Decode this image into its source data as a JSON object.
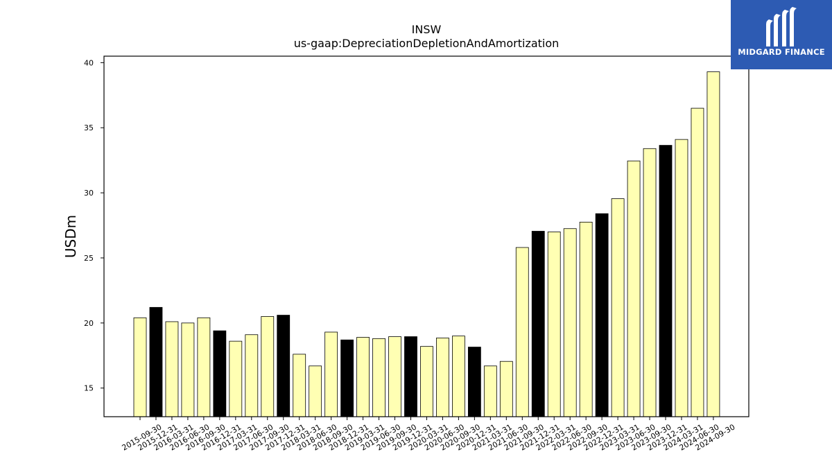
{
  "chart_data": {
    "type": "bar",
    "title": "INSW",
    "subtitle": "us-gaap:DepreciationDepletionAndAmortization",
    "ylabel": "USDm",
    "xlabel": "",
    "ylim": [
      12.8,
      40.5
    ],
    "yticks": [
      15,
      20,
      25,
      30,
      35,
      40
    ],
    "categories": [
      "2015-09-30",
      "2015-12-31",
      "2016-03-31",
      "2016-06-30",
      "2016-09-30",
      "2016-12-31",
      "2017-03-31",
      "2017-06-30",
      "2017-09-30",
      "2017-12-31",
      "2018-03-31",
      "2018-06-30",
      "2018-09-30",
      "2018-12-31",
      "2019-03-31",
      "2019-06-30",
      "2019-09-30",
      "2019-12-31",
      "2020-03-31",
      "2020-06-30",
      "2020-09-30",
      "2020-12-31",
      "2021-03-31",
      "2021-06-30",
      "2021-09-30",
      "2021-12-31",
      "2022-03-31",
      "2022-06-30",
      "2022-09-30",
      "2022-12-31",
      "2023-03-31",
      "2023-06-30",
      "2023-09-30",
      "2023-12-31",
      "2024-03-31",
      "2024-06-30",
      "2024-09-30"
    ],
    "values": [
      20.4,
      21.2,
      20.1,
      20.0,
      20.4,
      19.4,
      18.6,
      19.1,
      20.5,
      20.6,
      17.6,
      16.7,
      19.3,
      18.7,
      18.9,
      18.8,
      18.95,
      18.95,
      18.2,
      18.85,
      19.0,
      18.15,
      16.7,
      17.05,
      25.8,
      27.05,
      27.0,
      27.25,
      27.75,
      28.4,
      29.55,
      32.45,
      33.4,
      33.65,
      34.1,
      36.5,
      39.3
    ],
    "fiscal_year_end_highlight": [
      false,
      true,
      false,
      false,
      false,
      true,
      false,
      false,
      false,
      true,
      false,
      false,
      false,
      true,
      false,
      false,
      false,
      true,
      false,
      false,
      false,
      true,
      false,
      false,
      false,
      true,
      false,
      false,
      false,
      true,
      false,
      false,
      false,
      true,
      false,
      false,
      false
    ],
    "colors": {
      "bar": "#ffffb3",
      "highlight": "#000000",
      "edge": "#000000"
    },
    "grid": false,
    "legend": "none"
  },
  "logo": {
    "text": "MIDGARD FINANCE",
    "background": "#2d5bb3"
  }
}
